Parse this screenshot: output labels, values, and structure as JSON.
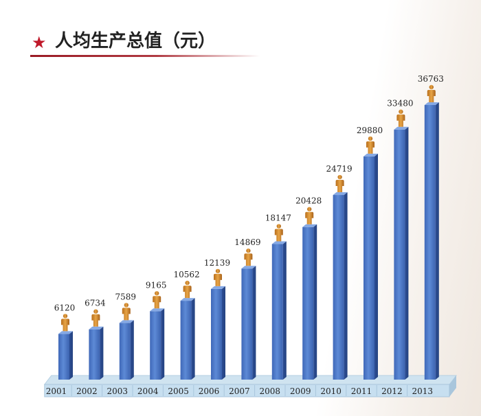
{
  "header": {
    "star_icon": "star-icon",
    "title": "人均生产总值（元）",
    "accent_color": "#c0192a"
  },
  "chart_data": {
    "type": "bar",
    "title": "人均生产总值（元）",
    "xlabel": "",
    "ylabel": "",
    "categories": [
      "2001",
      "2002",
      "2003",
      "2004",
      "2005",
      "2006",
      "2007",
      "2008",
      "2009",
      "2010",
      "2011",
      "2012",
      "2013"
    ],
    "values": [
      6120,
      6734,
      7589,
      9165,
      10562,
      12139,
      14869,
      18147,
      20428,
      24719,
      29880,
      33480,
      36763
    ],
    "ylim": [
      0,
      40000
    ],
    "grid": false,
    "legend": "none",
    "bar_color": "#4a74c4",
    "marker_icon": "person-figure-icon",
    "marker_color": "#d08a2c"
  }
}
